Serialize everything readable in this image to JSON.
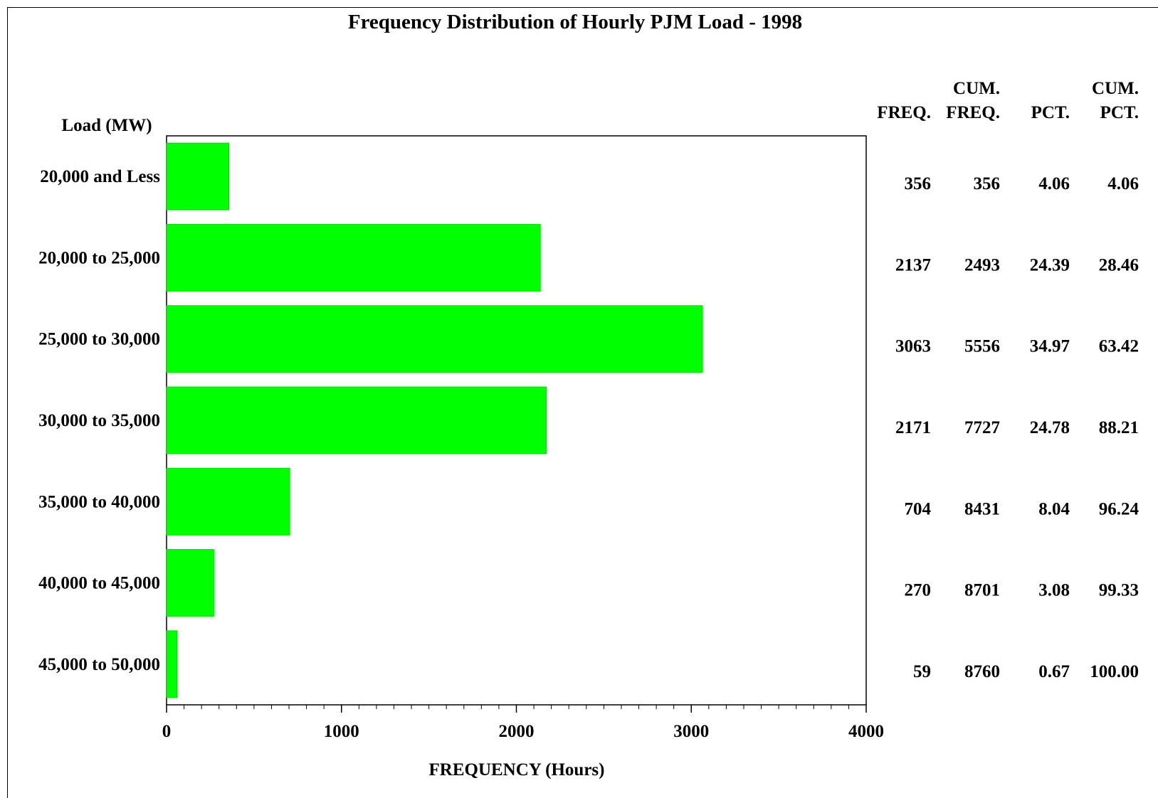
{
  "chart_data": {
    "type": "bar",
    "orientation": "horizontal",
    "title": "Frequency Distribution of Hourly PJM Load - 1998",
    "ylabel": "Load (MW)",
    "xlabel": "FREQUENCY (Hours)",
    "xlim": [
      0,
      4000
    ],
    "x_ticks": [
      "0",
      "1000",
      "2000",
      "3000",
      "4000"
    ],
    "x_tick_values": [
      0,
      1000,
      2000,
      3000,
      4000
    ],
    "x_minor_step": 100,
    "bar_color": "#00ff00",
    "categories": [
      "20,000 and Less",
      "20,000 to 25,000",
      "25,000 to 30,000",
      "30,000 to 35,000",
      "35,000 to 40,000",
      "40,000 to 45,000",
      "45,000 to 50,000"
    ],
    "values": [
      356,
      2137,
      3063,
      2171,
      704,
      270,
      59
    ],
    "table": {
      "headers": [
        {
          "line1": "",
          "line2": "FREQ."
        },
        {
          "line1": "CUM.",
          "line2": "FREQ."
        },
        {
          "line1": "",
          "line2": "PCT."
        },
        {
          "line1": "CUM.",
          "line2": "PCT."
        }
      ],
      "rows": [
        [
          "356",
          "356",
          "4.06",
          "4.06"
        ],
        [
          "2137",
          "2493",
          "24.39",
          "28.46"
        ],
        [
          "3063",
          "5556",
          "34.97",
          "63.42"
        ],
        [
          "2171",
          "7727",
          "24.78",
          "88.21"
        ],
        [
          "704",
          "8431",
          "8.04",
          "96.24"
        ],
        [
          "270",
          "8701",
          "3.08",
          "99.33"
        ],
        [
          "59",
          "8760",
          "0.67",
          "100.00"
        ]
      ]
    }
  }
}
